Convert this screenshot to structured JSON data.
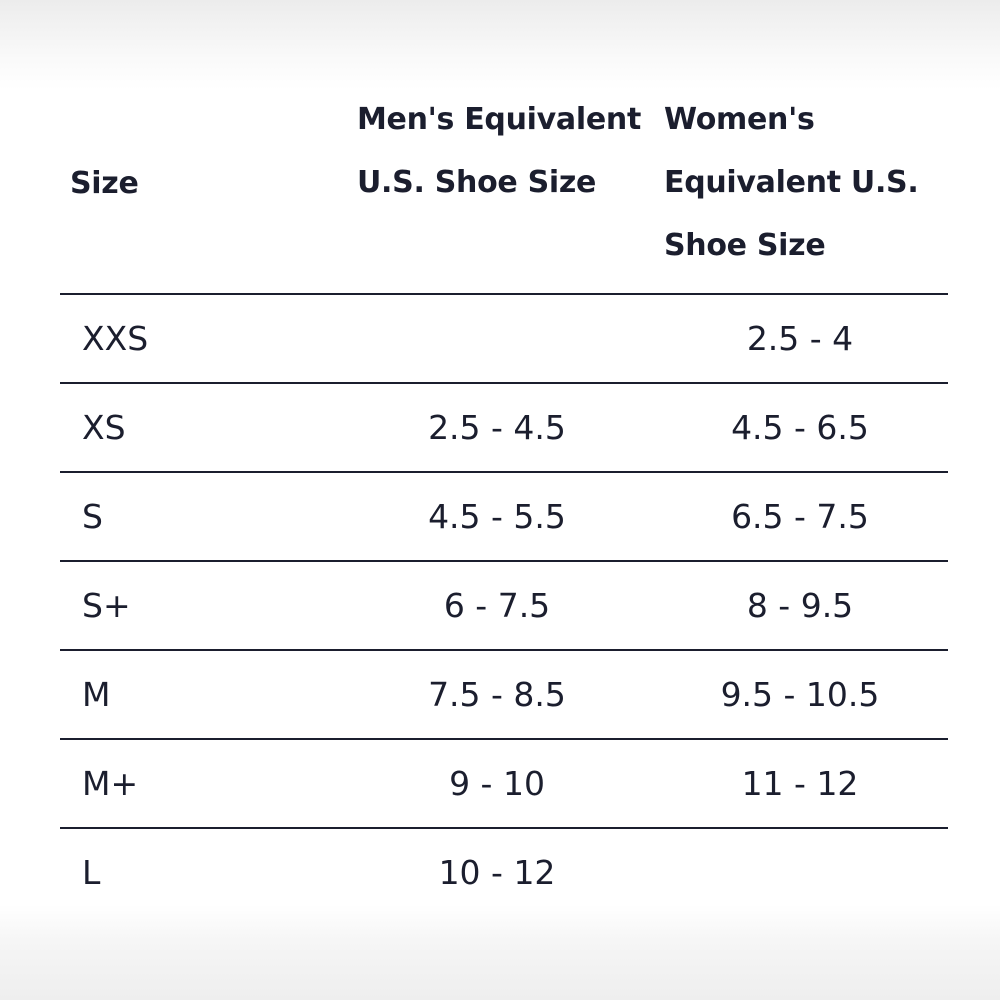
{
  "table": {
    "headers": [
      "Size",
      "Men's Equivalent U.S. Shoe Size",
      "Women's Equivalent U.S. Shoe Size"
    ],
    "rows": [
      [
        "XXS",
        null,
        "2.5 - 4"
      ],
      [
        "XS",
        "2.5 - 4.5",
        "4.5 - 6.5"
      ],
      [
        "S",
        "4.5 - 5.5",
        "6.5 - 7.5"
      ],
      [
        "S+",
        "6 - 7.5",
        "8 - 9.5"
      ],
      [
        "M",
        "7.5 - 8.5",
        "9.5 - 10.5"
      ],
      [
        "M+",
        "9 - 10",
        "11 - 12"
      ],
      [
        "L",
        "10 - 12",
        null
      ]
    ]
  }
}
